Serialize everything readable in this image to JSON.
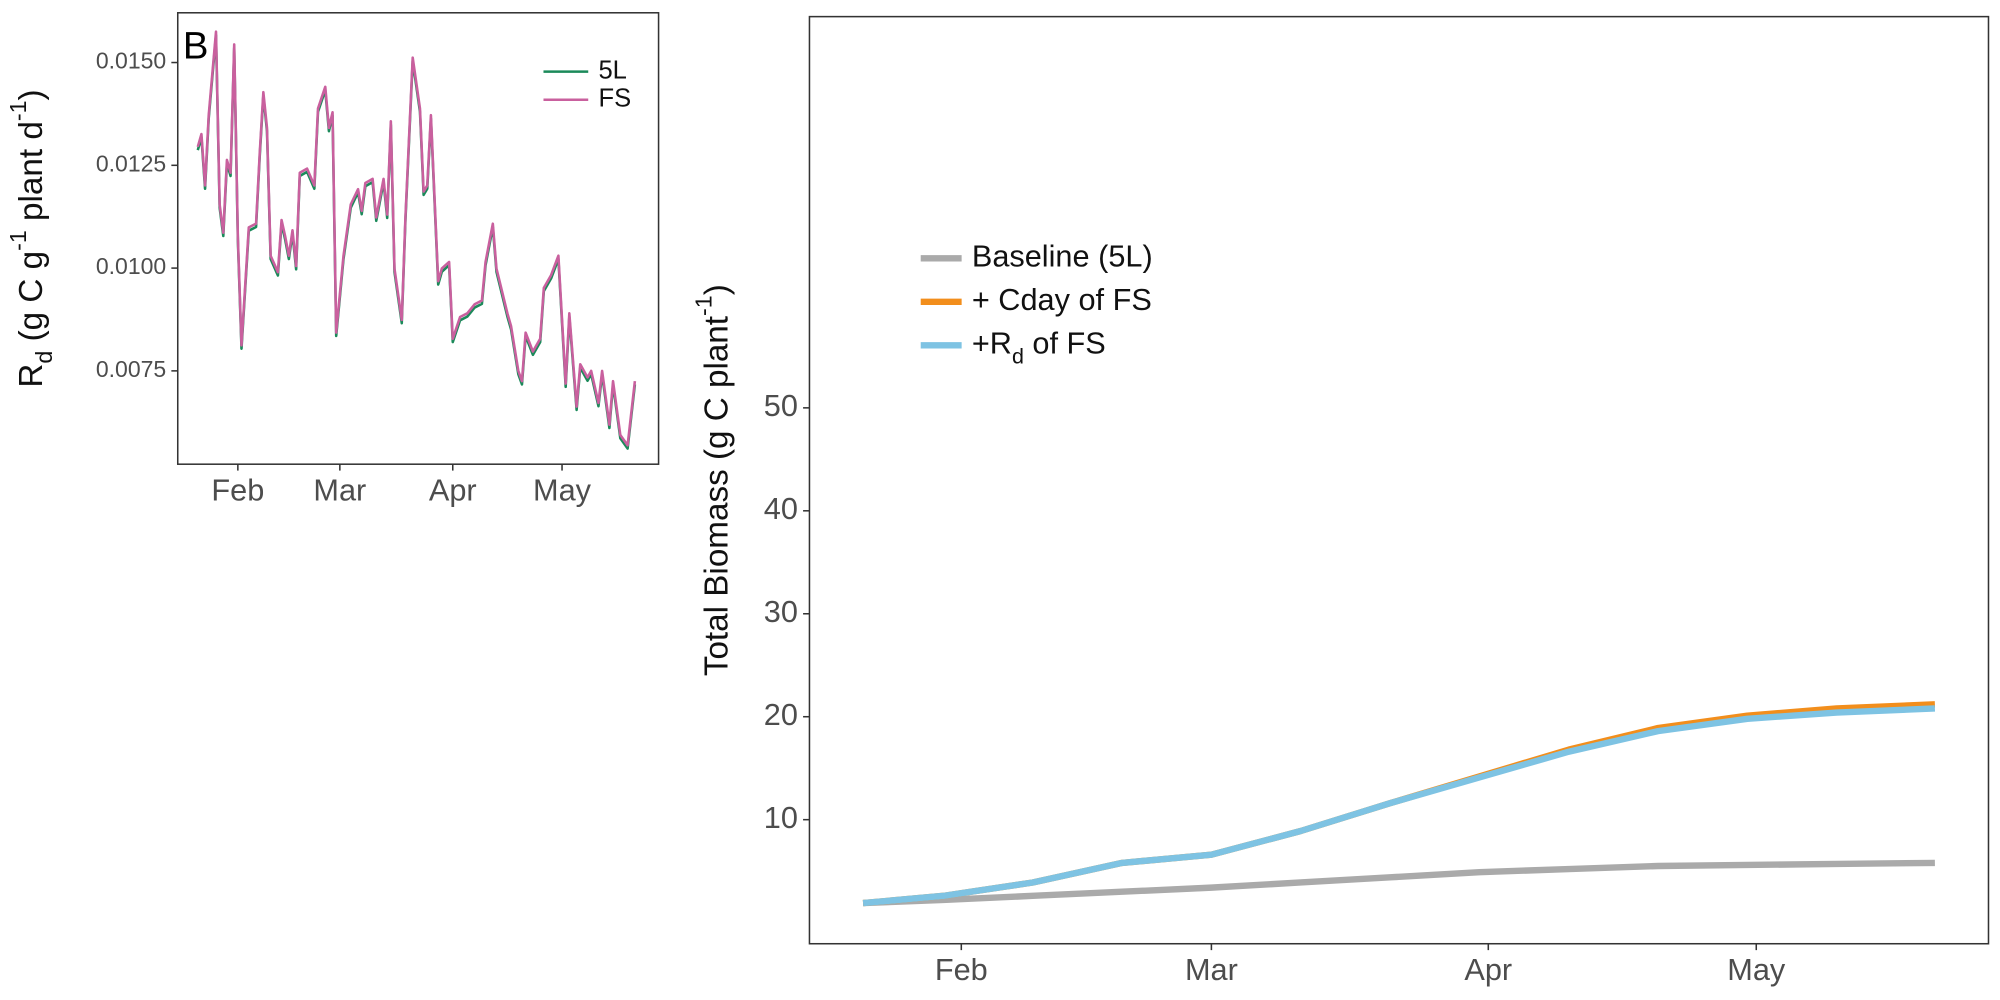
{
  "chart_data": [
    {
      "type": "line",
      "panel_label": "B",
      "ylabel": [
        [
          "R",
          ""
        ],
        [
          "d",
          "sub"
        ],
        [
          " (g C g",
          ""
        ],
        [
          "-1",
          "sup"
        ],
        [
          " plant d",
          ""
        ],
        [
          "-1",
          "sup"
        ],
        [
          ")",
          ""
        ]
      ],
      "x": [
        21,
        22,
        23,
        24,
        26,
        27,
        28,
        29,
        30,
        31,
        32,
        33,
        35,
        37,
        38,
        39,
        40,
        41,
        43,
        44,
        45,
        46,
        47,
        48,
        49,
        51,
        53,
        54,
        56,
        57,
        58,
        59,
        61,
        63,
        65,
        66,
        67,
        69,
        70,
        72,
        73,
        74,
        75,
        77,
        78,
        80,
        82,
        83,
        84,
        85,
        87,
        88,
        90,
        91,
        93,
        95,
        97,
        99,
        100,
        102,
        103,
        106,
        107,
        109,
        110,
        111,
        113,
        115,
        116,
        118,
        120,
        122,
        123,
        125,
        126,
        128,
        129,
        131,
        132,
        134,
        135,
        137,
        139,
        141
      ],
      "xlim": [
        15.5,
        147.5
      ],
      "xticks": [
        {
          "value": 32,
          "label": "Feb"
        },
        {
          "value": 60,
          "label": "Mar"
        },
        {
          "value": 91,
          "label": "Apr"
        },
        {
          "value": 121,
          "label": "May"
        }
      ],
      "ylim": [
        0.00523,
        0.01621
      ],
      "yticks": [
        {
          "value": 0.0075,
          "label": "0.0075"
        },
        {
          "value": 0.01,
          "label": "0.0100"
        },
        {
          "value": 0.0125,
          "label": "0.0125"
        },
        {
          "value": 0.015,
          "label": "0.0150"
        }
      ],
      "legend": "top-right",
      "series": [
        {
          "name": "5L",
          "color": "#1b8a5a",
          "values": [
            0.01287,
            0.01318,
            0.01193,
            0.01364,
            0.01567,
            0.01147,
            0.01078,
            0.01255,
            0.01224,
            0.01536,
            0.01069,
            0.00804,
            0.01091,
            0.011,
            0.01271,
            0.0142,
            0.01333,
            0.01022,
            0.00982,
            0.01109,
            0.01069,
            0.01022,
            0.01084,
            0.00997,
            0.01224,
            0.01234,
            0.01193,
            0.0138,
            0.01433,
            0.01333,
            0.01371,
            0.00835,
            0.01022,
            0.01147,
            0.01184,
            0.01131,
            0.01199,
            0.01209,
            0.01115,
            0.01209,
            0.01122,
            0.01349,
            0.00991,
            0.00866,
            0.01115,
            0.01504,
            0.0138,
            0.01178,
            0.01193,
            0.01364,
            0.0096,
            0.00991,
            0.01007,
            0.0082,
            0.00873,
            0.00882,
            0.00904,
            0.00913,
            0.01007,
            0.011,
            0.00991,
            0.00882,
            0.00851,
            0.00742,
            0.00717,
            0.00835,
            0.00789,
            0.0082,
            0.00944,
            0.00975,
            0.01022,
            0.00711,
            0.00882,
            0.00655,
            0.00758,
            0.00726,
            0.00742,
            0.00664,
            0.00742,
            0.00611,
            0.00717,
            0.00586,
            0.00561,
            0.00717
          ]
        },
        {
          "name": "FS",
          "color": "#c9609e",
          "values": [
            0.01295,
            0.01326,
            0.01201,
            0.01372,
            0.01575,
            0.01155,
            0.01086,
            0.01263,
            0.01232,
            0.01544,
            0.01077,
            0.00812,
            0.01099,
            0.01108,
            0.01279,
            0.01428,
            0.01341,
            0.0103,
            0.0099,
            0.01117,
            0.01077,
            0.0103,
            0.01092,
            0.01005,
            0.01232,
            0.01242,
            0.01201,
            0.01388,
            0.01441,
            0.01341,
            0.01379,
            0.00843,
            0.0103,
            0.01155,
            0.01192,
            0.01139,
            0.01207,
            0.01217,
            0.01123,
            0.01217,
            0.0113,
            0.01357,
            0.00999,
            0.00874,
            0.01123,
            0.01512,
            0.01388,
            0.01186,
            0.01201,
            0.01372,
            0.00968,
            0.00999,
            0.01015,
            0.00828,
            0.00881,
            0.0089,
            0.00912,
            0.00921,
            0.01015,
            0.01108,
            0.00999,
            0.0089,
            0.00859,
            0.0075,
            0.00725,
            0.00843,
            0.00797,
            0.00828,
            0.00952,
            0.00983,
            0.0103,
            0.00719,
            0.0089,
            0.00663,
            0.00766,
            0.00734,
            0.0075,
            0.00672,
            0.0075,
            0.00619,
            0.00725,
            0.00594,
            0.00569,
            0.00725
          ]
        }
      ]
    },
    {
      "type": "line",
      "ylabel": [
        [
          "Total Biomass (g C plant",
          ""
        ],
        [
          "-1",
          "sup"
        ],
        [
          ")",
          ""
        ]
      ],
      "x": [
        21,
        30,
        40,
        50,
        60,
        70,
        80,
        90,
        100,
        110,
        120,
        130,
        141
      ],
      "xlim": [
        15,
        147
      ],
      "xticks": [
        {
          "value": 32,
          "label": "Feb"
        },
        {
          "value": 60,
          "label": "Mar"
        },
        {
          "value": 91,
          "label": "Apr"
        },
        {
          "value": 121,
          "label": "May"
        }
      ],
      "ylim": [
        -2.05,
        88
      ],
      "yticks": [
        10,
        20,
        30,
        40,
        50
      ],
      "legend": "top-left",
      "series": [
        {
          "name": [
            [
              "Baseline (5L)",
              ""
            ]
          ],
          "color": "#aaaaaa",
          "values": [
            1.9,
            2.2,
            2.6,
            3.0,
            3.4,
            3.9,
            4.4,
            4.9,
            5.2,
            5.5,
            5.6,
            5.7,
            5.8
          ]
        },
        {
          "name": [
            [
              "+ Cday of FS",
              ""
            ]
          ],
          "color": "#f28e1c",
          "values": [
            1.9,
            2.6,
            3.9,
            5.8,
            6.6,
            8.9,
            11.6,
            14.2,
            16.8,
            18.9,
            20.1,
            20.8,
            21.2
          ]
        },
        {
          "name": [
            [
              "+R",
              ""
            ],
            [
              "d",
              "sub"
            ],
            [
              " of FS",
              ""
            ]
          ],
          "color": "#7ec3e3",
          "values": [
            1.9,
            2.6,
            3.9,
            5.8,
            6.6,
            8.9,
            11.6,
            14.1,
            16.6,
            18.6,
            19.8,
            20.4,
            20.8
          ]
        }
      ]
    }
  ]
}
